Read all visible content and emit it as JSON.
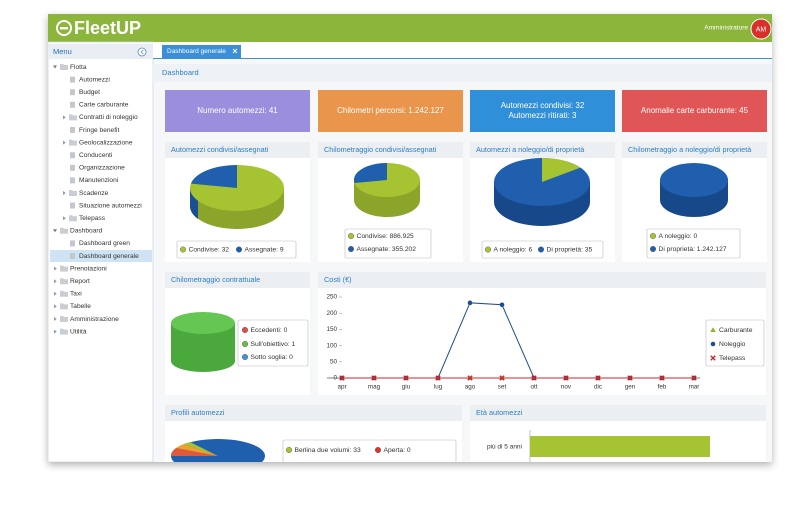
{
  "header": {
    "logo": "FleetUP",
    "user": "Amministratore",
    "avatar": "AM"
  },
  "sidebar": {
    "title": "Menu",
    "items": [
      {
        "label": "Flotta",
        "children": [
          {
            "label": "Automezzi"
          },
          {
            "label": "Budget"
          },
          {
            "label": "Carte carburante"
          },
          {
            "label": "Contratti di noleggio",
            "expandable": true
          },
          {
            "label": "Fringe benefit"
          },
          {
            "label": "Geolocalizzazione",
            "expandable": true
          },
          {
            "label": "Conducenti"
          },
          {
            "label": "Organizzazione"
          },
          {
            "label": "Manutenzioni"
          },
          {
            "label": "Scadenze",
            "expandable": true
          },
          {
            "label": "Situazione automezzi"
          },
          {
            "label": "Telepass",
            "expandable": true
          }
        ]
      },
      {
        "label": "Dashboard",
        "children": [
          {
            "label": "Dashboard green"
          },
          {
            "label": "Dashboard generale",
            "selected": true
          }
        ]
      },
      {
        "label": "Prenotazioni",
        "expandable": true
      },
      {
        "label": "Report",
        "expandable": true
      },
      {
        "label": "Taxi",
        "expandable": true
      },
      {
        "label": "Tabelle",
        "expandable": true
      },
      {
        "label": "Amministrazione",
        "expandable": true
      },
      {
        "label": "Utilità",
        "expandable": true
      }
    ]
  },
  "tab": "Dashboard generale",
  "breadcrumb": "Dashboard",
  "kpis": [
    {
      "lines": [
        "Numero automezzi: 41"
      ],
      "color": "#9b8fdd"
    },
    {
      "lines": [
        "Chilometri percorsi: 1.242.127"
      ],
      "color": "#e9954b"
    },
    {
      "lines": [
        "Automezzi condivisi: 32",
        "Automezzi ritirati: 3"
      ],
      "color": "#2f8fd8"
    },
    {
      "lines": [
        "Anomalie carte carburante: 45"
      ],
      "color": "#e05656"
    }
  ],
  "pie_panels": [
    {
      "title": "Automezzi condivisi/assegnati",
      "legend": [
        {
          "label": "Condivise: 32",
          "color": "#a6c431"
        },
        {
          "label": "Assegnate: 9",
          "color": "#1f5fae"
        }
      ]
    },
    {
      "title": "Chilometraggio condivisi/assegnati",
      "legend": [
        {
          "label": "Condivise: 886.925",
          "color": "#a6c431"
        },
        {
          "label": "Assegnate: 355.202",
          "color": "#1f5fae"
        }
      ]
    },
    {
      "title": "Automezzi a noleggio/di proprietà",
      "legend": [
        {
          "label": "A noleggio: 6",
          "color": "#a6c431"
        },
        {
          "label": "Di proprietà: 35",
          "color": "#1f5fae"
        }
      ]
    },
    {
      "title": "Chilometraggio a noleggio/di proprietà",
      "legend": [
        {
          "label": "A noleggio: 0",
          "color": "#a6c431"
        },
        {
          "label": "Di proprietà: 1.242.127",
          "color": "#1f5fae"
        }
      ]
    }
  ],
  "contract_panel": {
    "title": "Chilometraggio contrattuale",
    "legend": [
      {
        "label": "Eccedenti: 0",
        "color": "#e04a4a"
      },
      {
        "label": "Sull'obiettivo: 1",
        "color": "#6cbf3c"
      },
      {
        "label": "Sotto soglia: 0",
        "color": "#3a95dd"
      }
    ]
  },
  "costs": {
    "title": "Costi (€)",
    "type": "line",
    "categories": [
      "apr",
      "mag",
      "giu",
      "lug",
      "ago",
      "set",
      "ott",
      "nov",
      "dic",
      "gen",
      "feb",
      "mar"
    ],
    "series": [
      {
        "name": "Carburante",
        "color": "#8db733",
        "marker": "triangle",
        "values": [
          0,
          0,
          0,
          0,
          0,
          0,
          0,
          0,
          0,
          0,
          0,
          0
        ]
      },
      {
        "name": "Noleggio",
        "color": "#1f4e8c",
        "marker": "circle",
        "values": [
          0,
          0,
          0,
          0,
          232,
          226,
          0,
          0,
          0,
          0,
          0,
          0
        ]
      },
      {
        "name": "Telepass",
        "color": "#c62a2f",
        "marker": "cross",
        "values": [
          0,
          0,
          0,
          0,
          0,
          0,
          0,
          0,
          0,
          0,
          0,
          0
        ]
      }
    ],
    "ylim": [
      0,
      250
    ],
    "yticks": [
      0,
      50,
      100,
      150,
      200,
      250
    ]
  },
  "profiles_panel": {
    "title": "Profili automezzi",
    "legend": [
      {
        "label": "Berlina due volumi: 33",
        "color": "#a6c431"
      },
      {
        "label": "Aperta: 0",
        "color": "#d9342f"
      }
    ]
  },
  "age_panel": {
    "title": "Età automezzi",
    "categories": [
      "più di 5 anni"
    ]
  }
}
